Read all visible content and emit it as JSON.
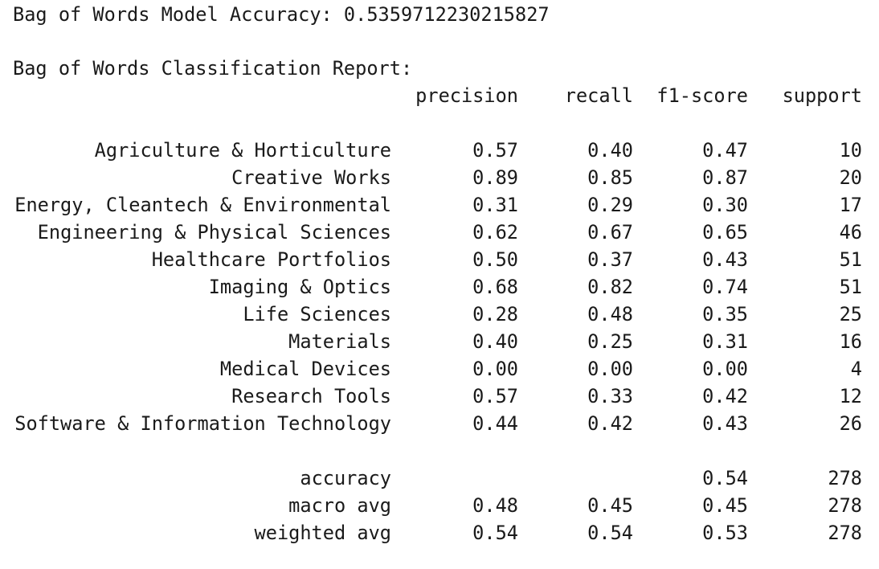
{
  "accuracy_line": "Bag of Words Model Accuracy: 0.5359712230215827",
  "report_title": "Bag of Words Classification Report:",
  "headers": {
    "precision": "precision",
    "recall": "recall",
    "f1": "f1-score",
    "support": "support"
  },
  "classes": [
    {
      "label": "Agriculture & Horticulture",
      "precision": "0.57",
      "recall": "0.40",
      "f1": "0.47",
      "support": "10"
    },
    {
      "label": "Creative Works",
      "precision": "0.89",
      "recall": "0.85",
      "f1": "0.87",
      "support": "20"
    },
    {
      "label": "Energy, Cleantech & Environmental",
      "precision": "0.31",
      "recall": "0.29",
      "f1": "0.30",
      "support": "17"
    },
    {
      "label": "Engineering & Physical Sciences",
      "precision": "0.62",
      "recall": "0.67",
      "f1": "0.65",
      "support": "46"
    },
    {
      "label": "Healthcare Portfolios",
      "precision": "0.50",
      "recall": "0.37",
      "f1": "0.43",
      "support": "51"
    },
    {
      "label": "Imaging & Optics",
      "precision": "0.68",
      "recall": "0.82",
      "f1": "0.74",
      "support": "51"
    },
    {
      "label": "Life Sciences",
      "precision": "0.28",
      "recall": "0.48",
      "f1": "0.35",
      "support": "25"
    },
    {
      "label": "Materials",
      "precision": "0.40",
      "recall": "0.25",
      "f1": "0.31",
      "support": "16"
    },
    {
      "label": "Medical Devices",
      "precision": "0.00",
      "recall": "0.00",
      "f1": "0.00",
      "support": "4"
    },
    {
      "label": "Research Tools",
      "precision": "0.57",
      "recall": "0.33",
      "f1": "0.42",
      "support": "12"
    },
    {
      "label": "Software & Information Technology",
      "precision": "0.44",
      "recall": "0.42",
      "f1": "0.43",
      "support": "26"
    }
  ],
  "summary": [
    {
      "label": "accuracy",
      "precision": "",
      "recall": "",
      "f1": "0.54",
      "support": "278"
    },
    {
      "label": "macro avg",
      "precision": "0.48",
      "recall": "0.45",
      "f1": "0.45",
      "support": "278"
    },
    {
      "label": "weighted avg",
      "precision": "0.54",
      "recall": "0.54",
      "f1": "0.53",
      "support": "278"
    }
  ]
}
